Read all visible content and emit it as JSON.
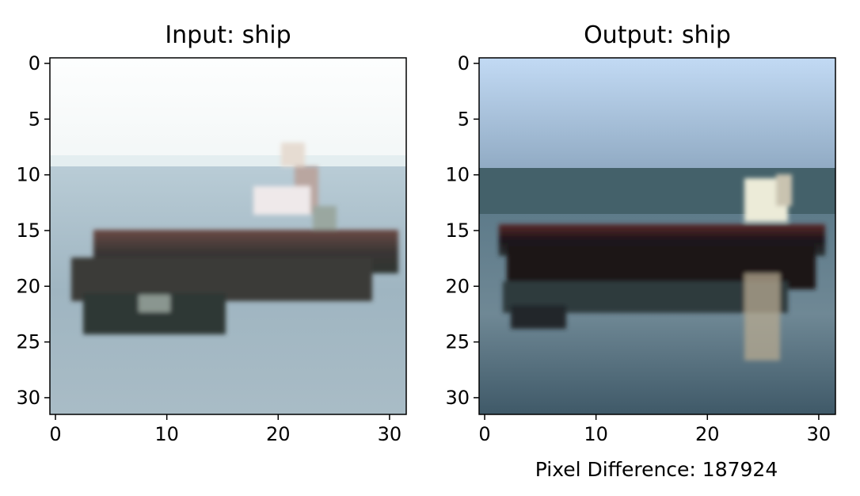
{
  "panels": [
    {
      "title": "Input: ship",
      "x_ticks": [
        "0",
        "10",
        "20",
        "30"
      ],
      "y_ticks": [
        "0",
        "5",
        "10",
        "15",
        "20",
        "25",
        "30"
      ]
    },
    {
      "title": "Output: ship",
      "x_ticks": [
        "0",
        "10",
        "20",
        "30"
      ],
      "y_ticks": [
        "0",
        "5",
        "10",
        "15",
        "20",
        "25",
        "30"
      ]
    }
  ],
  "caption": "Pixel Difference: 187924"
}
